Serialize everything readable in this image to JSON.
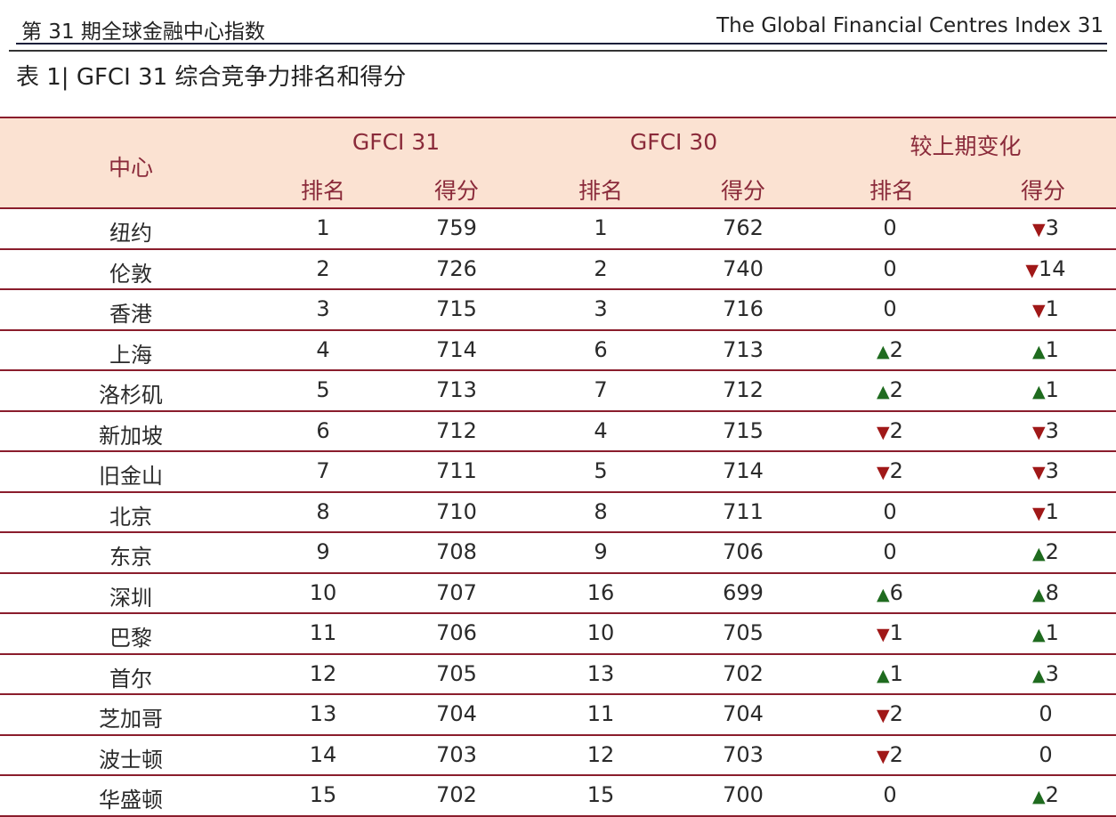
{
  "header": {
    "left": "第 31 期全球金融中心指数",
    "right": "The Global Financial Centres Index 31"
  },
  "caption": "表 1| GFCI 31 综合竞争力排名和得分",
  "columns": {
    "center": "中心",
    "gfci31": "GFCI 31",
    "gfci30": "GFCI 30",
    "change": "较上期变化",
    "rank": "排名",
    "score": "得分"
  },
  "colors": {
    "up": "#1f6b1f",
    "down": "#a01818",
    "header_bg": "#fbe2d2",
    "rule": "#8a1d2c"
  },
  "rows": [
    {
      "center": "纽约",
      "r31": "1",
      "s31": "759",
      "r30": "1",
      "s30": "762",
      "dr": {
        "dir": "",
        "v": "0"
      },
      "ds": {
        "dir": "down",
        "v": "3"
      }
    },
    {
      "center": "伦敦",
      "r31": "2",
      "s31": "726",
      "r30": "2",
      "s30": "740",
      "dr": {
        "dir": "",
        "v": "0"
      },
      "ds": {
        "dir": "down",
        "v": "14"
      }
    },
    {
      "center": "香港",
      "r31": "3",
      "s31": "715",
      "r30": "3",
      "s30": "716",
      "dr": {
        "dir": "",
        "v": "0"
      },
      "ds": {
        "dir": "down",
        "v": "1"
      }
    },
    {
      "center": "上海",
      "r31": "4",
      "s31": "714",
      "r30": "6",
      "s30": "713",
      "dr": {
        "dir": "up",
        "v": "2"
      },
      "ds": {
        "dir": "up",
        "v": "1"
      }
    },
    {
      "center": "洛杉矶",
      "r31": "5",
      "s31": "713",
      "r30": "7",
      "s30": "712",
      "dr": {
        "dir": "up",
        "v": "2"
      },
      "ds": {
        "dir": "up",
        "v": "1"
      }
    },
    {
      "center": "新加坡",
      "r31": "6",
      "s31": "712",
      "r30": "4",
      "s30": "715",
      "dr": {
        "dir": "down",
        "v": "2"
      },
      "ds": {
        "dir": "down",
        "v": "3"
      }
    },
    {
      "center": "旧金山",
      "r31": "7",
      "s31": "711",
      "r30": "5",
      "s30": "714",
      "dr": {
        "dir": "down",
        "v": "2"
      },
      "ds": {
        "dir": "down",
        "v": "3"
      }
    },
    {
      "center": "北京",
      "r31": "8",
      "s31": "710",
      "r30": "8",
      "s30": "711",
      "dr": {
        "dir": "",
        "v": "0"
      },
      "ds": {
        "dir": "down",
        "v": "1"
      }
    },
    {
      "center": "东京",
      "r31": "9",
      "s31": "708",
      "r30": "9",
      "s30": "706",
      "dr": {
        "dir": "",
        "v": "0"
      },
      "ds": {
        "dir": "up",
        "v": "2"
      }
    },
    {
      "center": "深圳",
      "r31": "10",
      "s31": "707",
      "r30": "16",
      "s30": "699",
      "dr": {
        "dir": "up",
        "v": "6"
      },
      "ds": {
        "dir": "up",
        "v": "8"
      }
    },
    {
      "center": "巴黎",
      "r31": "11",
      "s31": "706",
      "r30": "10",
      "s30": "705",
      "dr": {
        "dir": "down",
        "v": "1"
      },
      "ds": {
        "dir": "up",
        "v": "1"
      }
    },
    {
      "center": "首尔",
      "r31": "12",
      "s31": "705",
      "r30": "13",
      "s30": "702",
      "dr": {
        "dir": "up",
        "v": "1"
      },
      "ds": {
        "dir": "up",
        "v": "3"
      }
    },
    {
      "center": "芝加哥",
      "r31": "13",
      "s31": "704",
      "r30": "11",
      "s30": "704",
      "dr": {
        "dir": "down",
        "v": "2"
      },
      "ds": {
        "dir": "",
        "v": "0"
      }
    },
    {
      "center": "波士顿",
      "r31": "14",
      "s31": "703",
      "r30": "12",
      "s30": "703",
      "dr": {
        "dir": "down",
        "v": "2"
      },
      "ds": {
        "dir": "",
        "v": "0"
      }
    },
    {
      "center": "华盛顿",
      "r31": "15",
      "s31": "702",
      "r30": "15",
      "s30": "700",
      "dr": {
        "dir": "",
        "v": "0"
      },
      "ds": {
        "dir": "up",
        "v": "2"
      }
    }
  ]
}
